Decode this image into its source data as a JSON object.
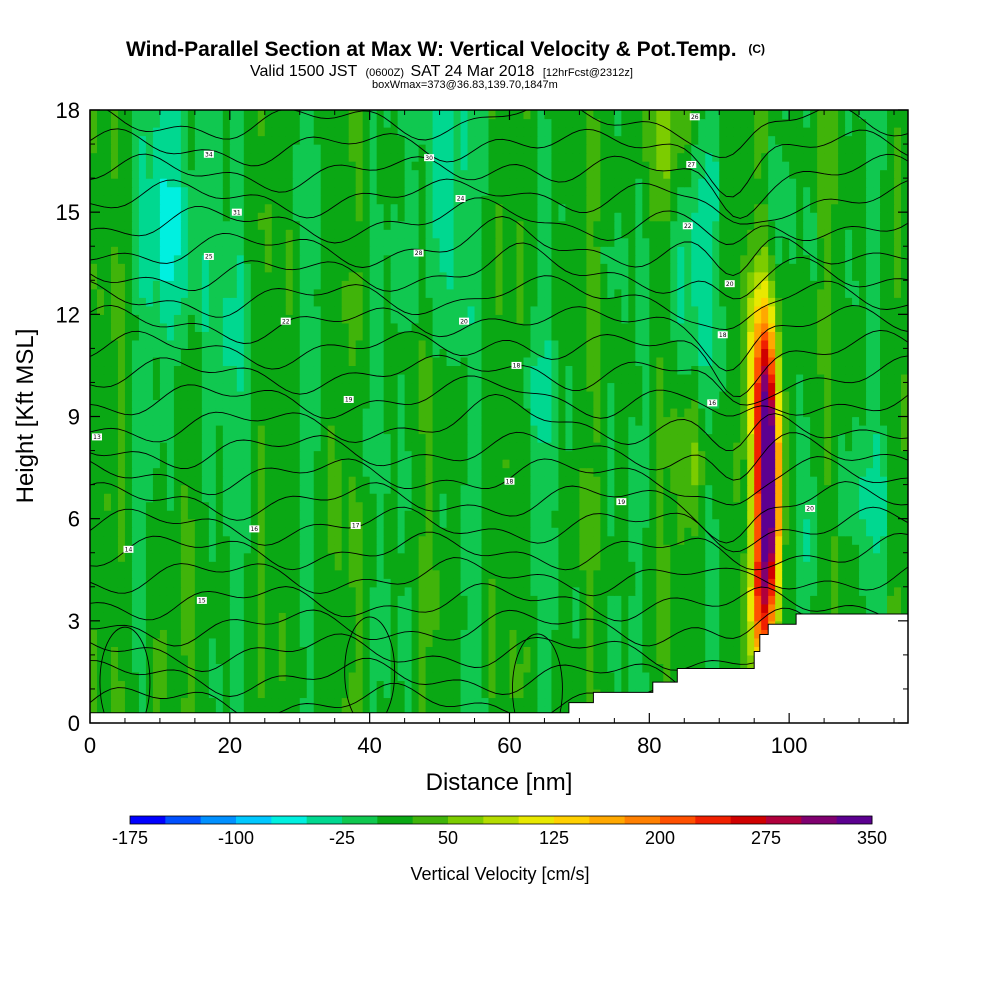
{
  "title": {
    "main": "Wind-Parallel Section at Max W: Vertical Velocity & Pot.Temp.",
    "copyright": "(C)",
    "valid_a": "Valid 1500 JST",
    "valid_b": "(0600Z)",
    "valid_c": "SAT 24 Mar 2018",
    "valid_d": "[12hrFcst@2312z]",
    "box_info": "boxWmax=373@36.83,139.70,1847m"
  },
  "chart_data": {
    "type": "heatmap",
    "xlabel": "Distance [nm]",
    "ylabel": "Height [Kft MSL]",
    "xlim": [
      0,
      117
    ],
    "ylim": [
      0,
      18
    ],
    "x_ticks": [
      0,
      20,
      40,
      60,
      80,
      100
    ],
    "y_ticks": [
      0,
      3,
      6,
      9,
      12,
      15,
      18
    ],
    "x_tick_labels": [
      "0",
      "20",
      "40",
      "60",
      "80",
      "100"
    ],
    "y_tick_labels": [
      "0",
      "3",
      "6",
      "9",
      "12",
      "15",
      "18"
    ],
    "grid": false,
    "colorbar": {
      "label": "Vertical Velocity [cm/s]",
      "levels_start": -175,
      "level_step": 25,
      "tick_labels": [
        "-175",
        "-100",
        "-25",
        "50",
        "125",
        "200",
        "275",
        "350"
      ],
      "tick_values": [
        -175,
        -100,
        -25,
        50,
        125,
        200,
        275,
        350
      ],
      "colors": [
        "#0000ff",
        "#0050ff",
        "#0090ff",
        "#00c8ff",
        "#00f0e0",
        "#00d890",
        "#10c850",
        "#0aa814",
        "#40b40a",
        "#7ccc00",
        "#b4dc00",
        "#e8e800",
        "#ffd000",
        "#ffa800",
        "#ff8000",
        "#ff5000",
        "#f02000",
        "#d00000",
        "#b0003c",
        "#800070",
        "#5c0090"
      ]
    },
    "velocity_field": {
      "background_value": 10,
      "features": [
        {
          "x": 97,
          "y": 7.0,
          "sx": 1.2,
          "sy": 2.6,
          "amp": 373
        },
        {
          "x": 96,
          "y": 10.5,
          "sx": 1.4,
          "sy": 1.7,
          "amp": 130
        },
        {
          "x": 96,
          "y": 3.4,
          "sx": 1.4,
          "sy": 1.4,
          "amp": 130
        },
        {
          "x": 12,
          "y": 15,
          "sx": 3.0,
          "sy": 3.0,
          "amp": -65
        },
        {
          "x": 50,
          "y": 16,
          "sx": 2.5,
          "sy": 3.0,
          "amp": -55
        },
        {
          "x": 86,
          "y": 14,
          "sx": 2.5,
          "sy": 3.0,
          "amp": -45
        },
        {
          "x": 36,
          "y": 8.5,
          "sx": 3.0,
          "sy": 1.5,
          "amp": -25
        },
        {
          "x": 83,
          "y": 17.5,
          "sx": 3.0,
          "sy": 1.3,
          "amp": 55
        },
        {
          "x": 86,
          "y": 7.5,
          "sx": 2.0,
          "sy": 1.5,
          "amp": 40
        },
        {
          "x": 35,
          "y": 7.5,
          "sx": 1.2,
          "sy": 2.0,
          "amp": 40
        },
        {
          "x": 103,
          "y": 5.5,
          "sx": 2.0,
          "sy": 1.2,
          "amp": -30
        },
        {
          "x": 112,
          "y": 6.5,
          "sx": 2.5,
          "sy": 1.5,
          "amp": -30
        },
        {
          "x": 10,
          "y": 1.8,
          "sx": 0.8,
          "sy": 1.2,
          "amp": 40
        },
        {
          "x": 64,
          "y": 9.5,
          "sx": 2.0,
          "sy": 2.0,
          "amp": -25
        },
        {
          "x": 20,
          "y": 11,
          "sx": 3.0,
          "sy": 2.5,
          "amp": -25
        }
      ]
    },
    "terrain": {
      "x": [
        0,
        68.5,
        68.5,
        72,
        72,
        80.5,
        80.5,
        84,
        84,
        95,
        95,
        95.8,
        95.8,
        97,
        97,
        101,
        101,
        104,
        104,
        117
      ],
      "height": [
        0.3,
        0.3,
        0.6,
        0.6,
        0.9,
        0.9,
        1.2,
        1.2,
        1.6,
        1.6,
        2.1,
        2.1,
        2.6,
        2.6,
        2.9,
        2.9,
        3.2,
        3.2,
        3.2,
        3.2
      ]
    },
    "potential_temperature": {
      "contour_interval": 1,
      "contour_labels": [
        {
          "x": 1,
          "y": 8.4,
          "text": "13"
        },
        {
          "x": 5.5,
          "y": 5.1,
          "text": "14"
        },
        {
          "x": 16,
          "y": 3.6,
          "text": "15"
        },
        {
          "x": 23.5,
          "y": 5.7,
          "text": "16"
        },
        {
          "x": 38,
          "y": 5.8,
          "text": "17"
        },
        {
          "x": 60,
          "y": 7.1,
          "text": "18"
        },
        {
          "x": 76,
          "y": 6.5,
          "text": "19"
        },
        {
          "x": 103,
          "y": 6.3,
          "text": "20"
        },
        {
          "x": 37,
          "y": 9.5,
          "text": "19"
        },
        {
          "x": 61,
          "y": 10.5,
          "text": "18"
        },
        {
          "x": 89,
          "y": 9.4,
          "text": "16"
        },
        {
          "x": 90.5,
          "y": 11.4,
          "text": "18"
        },
        {
          "x": 53.5,
          "y": 11.8,
          "text": "20"
        },
        {
          "x": 28,
          "y": 11.8,
          "text": "22"
        },
        {
          "x": 17,
          "y": 13.7,
          "text": "25"
        },
        {
          "x": 47,
          "y": 13.8,
          "text": "28"
        },
        {
          "x": 91.5,
          "y": 12.9,
          "text": "20"
        },
        {
          "x": 85.5,
          "y": 14.6,
          "text": "22"
        },
        {
          "x": 53,
          "y": 15.4,
          "text": "24"
        },
        {
          "x": 21,
          "y": 15.0,
          "text": "31"
        },
        {
          "x": 48.5,
          "y": 16.6,
          "text": "30"
        },
        {
          "x": 86,
          "y": 16.4,
          "text": "27"
        },
        {
          "x": 17,
          "y": 16.7,
          "text": "34"
        },
        {
          "x": 86.5,
          "y": 17.8,
          "text": "26"
        }
      ]
    }
  }
}
